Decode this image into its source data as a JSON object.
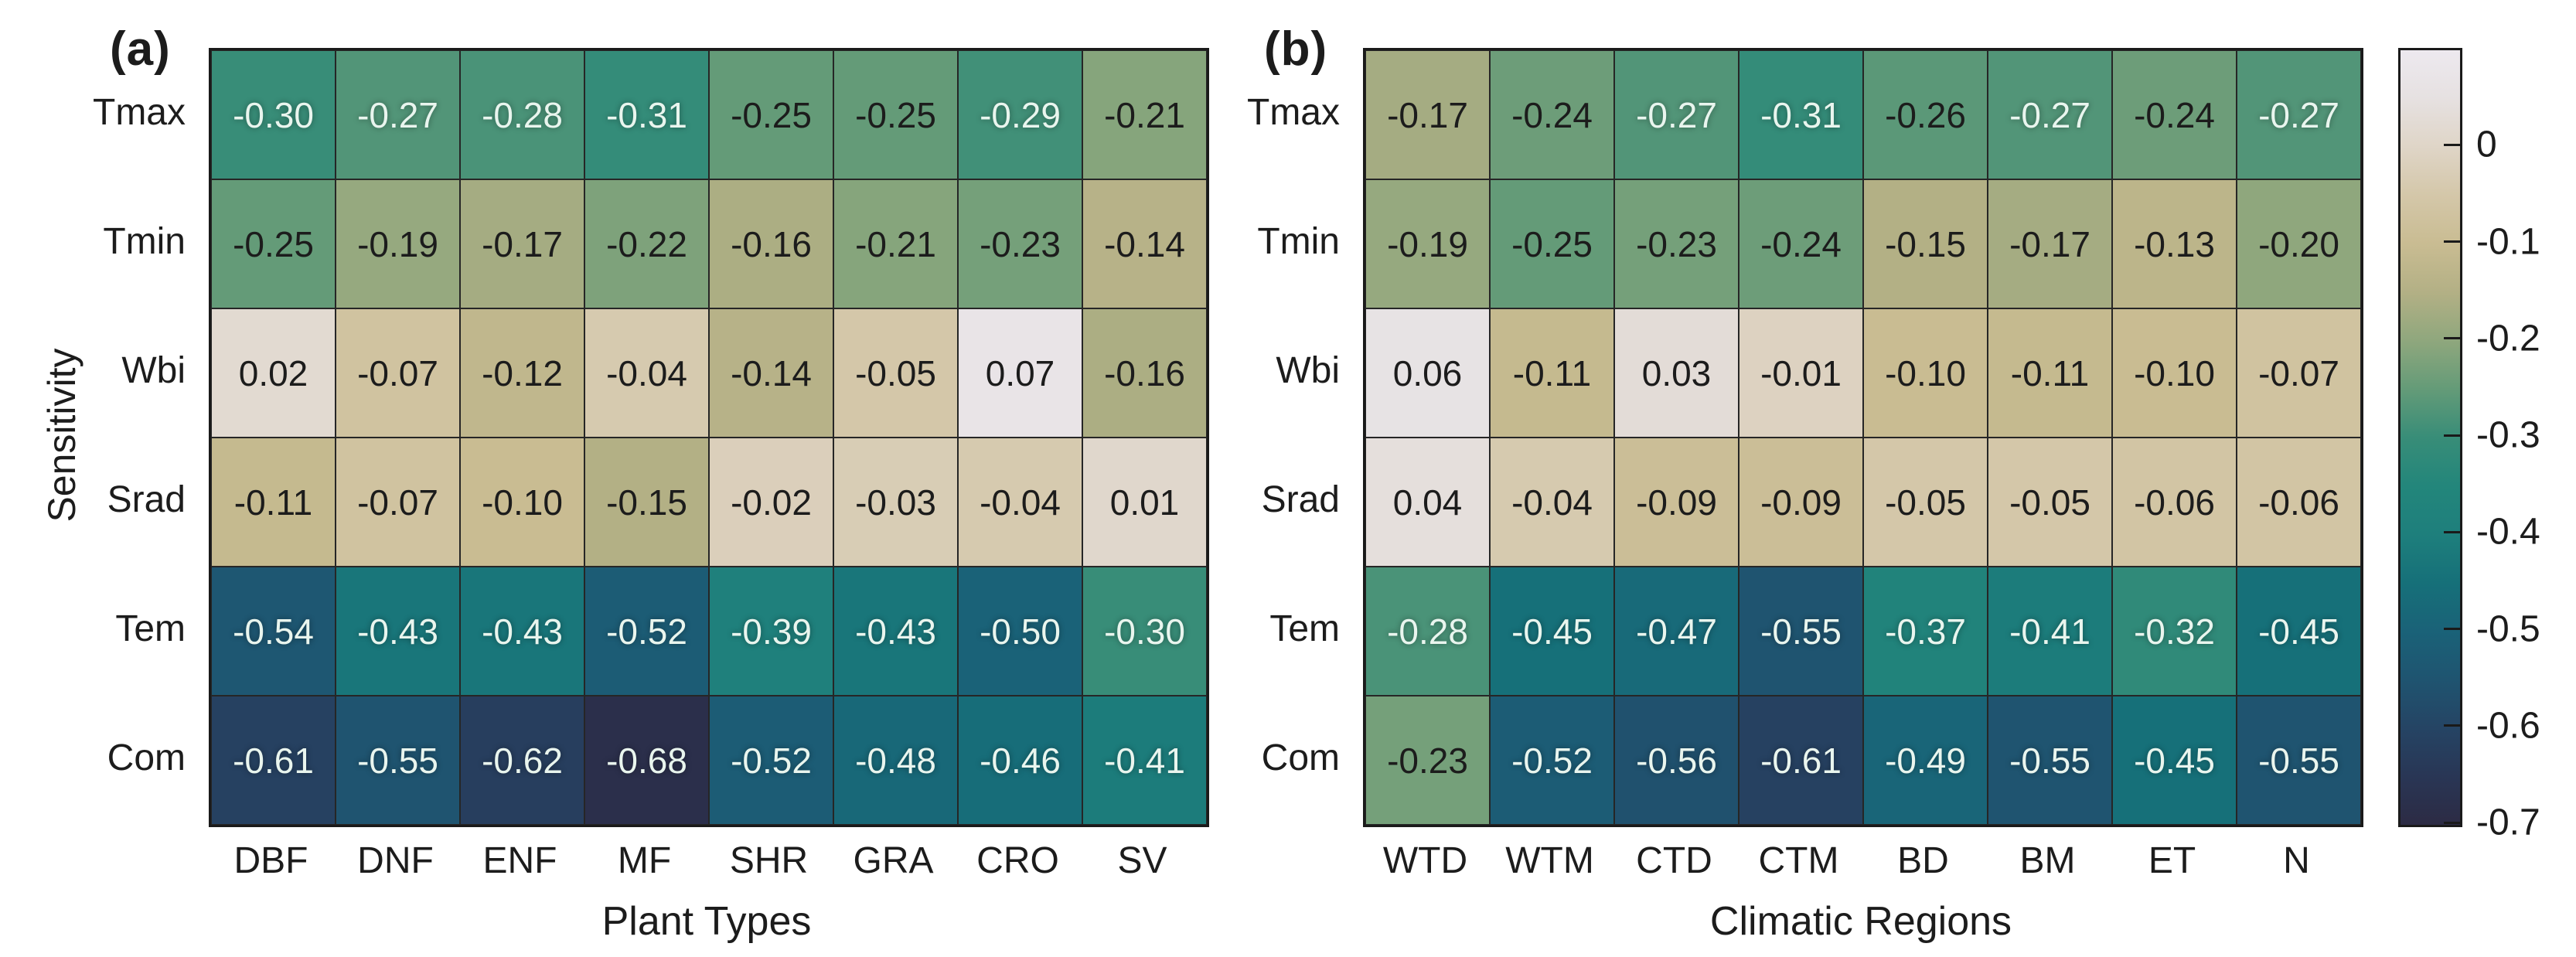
{
  "chart_data": {
    "type": "heatmap",
    "ylabel": "Sensitivity",
    "value_decimals": 2,
    "white_text_threshold": -0.265,
    "text_colors": {
      "dark": "#1c1c1c",
      "light": "#e9f5ee"
    },
    "panels": [
      {
        "label": "(a)",
        "xlabel": "Plant Types",
        "row_labels": [
          "Tmax",
          "Tmin",
          "Wbi",
          "Srad",
          "Tem",
          "Com"
        ],
        "col_labels": [
          "DBF",
          "DNF",
          "ENF",
          "MF",
          "SHR",
          "GRA",
          "CRO",
          "SV"
        ],
        "values": [
          [
            -0.3,
            -0.27,
            -0.28,
            -0.31,
            -0.25,
            -0.25,
            -0.29,
            -0.21
          ],
          [
            -0.25,
            -0.19,
            -0.17,
            -0.22,
            -0.16,
            -0.21,
            -0.23,
            -0.14
          ],
          [
            0.02,
            -0.07,
            -0.12,
            -0.04,
            -0.14,
            -0.05,
            0.07,
            -0.16
          ],
          [
            -0.11,
            -0.07,
            -0.1,
            -0.15,
            -0.02,
            -0.03,
            -0.04,
            0.01
          ],
          [
            -0.54,
            -0.43,
            -0.43,
            -0.52,
            -0.39,
            -0.43,
            -0.5,
            -0.3
          ],
          [
            -0.61,
            -0.55,
            -0.62,
            -0.68,
            -0.52,
            -0.48,
            -0.46,
            -0.41
          ]
        ]
      },
      {
        "label": "(b)",
        "xlabel": "Climatic Regions",
        "row_labels": [
          "Tmax",
          "Tmin",
          "Wbi",
          "Srad",
          "Tem",
          "Com"
        ],
        "col_labels": [
          "WTD",
          "WTM",
          "CTD",
          "CTM",
          "BD",
          "BM",
          "ET",
          "N"
        ],
        "values": [
          [
            -0.17,
            -0.24,
            -0.27,
            -0.31,
            -0.26,
            -0.27,
            -0.24,
            -0.27
          ],
          [
            -0.19,
            -0.25,
            -0.23,
            -0.24,
            -0.15,
            -0.17,
            -0.13,
            -0.2
          ],
          [
            0.06,
            -0.11,
            0.03,
            -0.01,
            -0.1,
            -0.11,
            -0.1,
            -0.07
          ],
          [
            0.04,
            -0.04,
            -0.09,
            -0.09,
            -0.05,
            -0.05,
            -0.06,
            -0.06
          ],
          [
            -0.28,
            -0.45,
            -0.47,
            -0.55,
            -0.37,
            -0.41,
            -0.32,
            -0.45
          ],
          [
            -0.23,
            -0.52,
            -0.56,
            -0.61,
            -0.49,
            -0.55,
            -0.45,
            -0.55
          ]
        ]
      }
    ],
    "colorbar": {
      "vmin": -0.7,
      "vmax": 0.1,
      "tick_values": [
        0,
        -0.1,
        -0.2,
        -0.3,
        -0.4,
        -0.5,
        -0.6,
        -0.7
      ],
      "tick_labels": [
        "0",
        "-0.1",
        "-0.2",
        "-0.3",
        "-0.4",
        "-0.5",
        "-0.6",
        "-0.7"
      ],
      "colormap_stops": [
        {
          "value": 0.1,
          "color": "#EDE9EF"
        },
        {
          "value": 0.05,
          "color": "#E6E1E1"
        },
        {
          "value": 0.0,
          "color": "#DFD5C7"
        },
        {
          "value": -0.05,
          "color": "#D4C7A9"
        },
        {
          "value": -0.1,
          "color": "#C9BC92"
        },
        {
          "value": -0.15,
          "color": "#B3B085"
        },
        {
          "value": -0.2,
          "color": "#8FA77D"
        },
        {
          "value": -0.25,
          "color": "#649B78"
        },
        {
          "value": -0.3,
          "color": "#388D78"
        },
        {
          "value": -0.35,
          "color": "#23867B"
        },
        {
          "value": -0.4,
          "color": "#1E7F7C"
        },
        {
          "value": -0.45,
          "color": "#167079"
        },
        {
          "value": -0.5,
          "color": "#1A6278"
        },
        {
          "value": -0.55,
          "color": "#1F5470"
        },
        {
          "value": -0.6,
          "color": "#254464"
        },
        {
          "value": -0.65,
          "color": "#293655"
        },
        {
          "value": -0.7,
          "color": "#2C2B44"
        }
      ]
    }
  }
}
